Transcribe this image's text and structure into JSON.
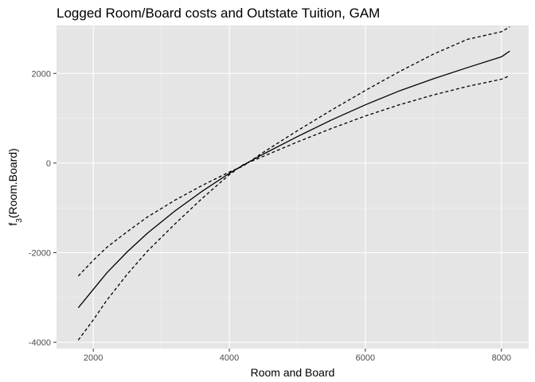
{
  "chart_data": {
    "type": "line",
    "title": "Logged Room/Board costs and Outstate Tuition, GAM",
    "xlabel": "Room and Board",
    "ylabel_main": "f",
    "ylabel_sub": "3",
    "ylabel_rest": "(Room.Board)",
    "xlim": [
      1460,
      8400
    ],
    "ylim": [
      -4140,
      3070
    ],
    "x_ticks": [
      2000,
      4000,
      6000,
      8000
    ],
    "x_tick_labels": [
      "2000",
      "4000",
      "6000",
      "8000"
    ],
    "y_ticks": [
      -4000,
      -2000,
      0,
      2000
    ],
    "y_tick_labels": [
      "-4000",
      "-2000",
      "0",
      "2000"
    ],
    "grid": true,
    "background": "#e5e5e5",
    "series": [
      {
        "style": "solid",
        "color": "#000000",
        "x": [
          1780,
          2000,
          2200,
          2500,
          2800,
          3200,
          3600,
          4000,
          4200,
          4500,
          5000,
          5500,
          6000,
          6500,
          7000,
          7500,
          8000,
          8124
        ],
        "y": [
          -3230,
          -2820,
          -2450,
          -1980,
          -1560,
          -1070,
          -630,
          -230,
          -50,
          200,
          590,
          960,
          1300,
          1610,
          1880,
          2130,
          2370,
          2500
        ]
      },
      {
        "style": "dashed",
        "color": "#000000",
        "x": [
          1780,
          2000,
          2200,
          2500,
          2800,
          3200,
          3600,
          4000,
          4200,
          4500,
          5000,
          5500,
          6000,
          6500,
          7000,
          7500,
          8000,
          8124
        ],
        "y": [
          -2520,
          -2170,
          -1880,
          -1530,
          -1200,
          -830,
          -500,
          -200,
          -70,
          240,
          720,
          1180,
          1620,
          2040,
          2430,
          2760,
          2930,
          3040
        ]
      },
      {
        "style": "dashed",
        "color": "#000000",
        "x": [
          1780,
          2000,
          2200,
          2500,
          2800,
          3200,
          3600,
          4000,
          4200,
          4500,
          5000,
          5500,
          6000,
          6500,
          7000,
          7500,
          8000,
          8124
        ],
        "y": [
          -3950,
          -3500,
          -3060,
          -2480,
          -1960,
          -1360,
          -790,
          -260,
          -40,
          150,
          470,
          770,
          1050,
          1300,
          1520,
          1710,
          1870,
          1950
        ]
      }
    ]
  }
}
